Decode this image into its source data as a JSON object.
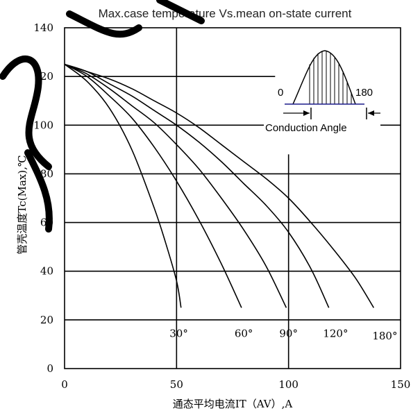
{
  "chart_data": {
    "type": "line",
    "title": "Max.case temperature Vs.mean on-state current",
    "xlabel": "通态平均电流IT（AV）,A",
    "ylabel": "管壳温度Tc(Max),℃",
    "xlim": [
      0,
      150
    ],
    "ylim": [
      0,
      140
    ],
    "x_ticks": [
      "0",
      "50",
      "100",
      "150"
    ],
    "y_ticks": [
      "0",
      "20",
      "40",
      "60",
      "80",
      "100",
      "120",
      "140"
    ],
    "grid": true,
    "series": [
      {
        "name": "30°",
        "x": [
          0,
          10,
          20,
          30,
          40,
          45,
          50,
          52
        ],
        "y": [
          125,
          118,
          107,
          90,
          66,
          52,
          36,
          25
        ]
      },
      {
        "name": "60°",
        "x": [
          0,
          10,
          20,
          30,
          40,
          50,
          60,
          70,
          79
        ],
        "y": [
          125,
          120,
          112,
          103,
          91,
          77,
          61,
          43,
          25
        ]
      },
      {
        "name": "90°",
        "x": [
          0,
          10,
          20,
          30,
          40,
          50,
          60,
          70,
          80,
          90,
          99
        ],
        "y": [
          125,
          121,
          115,
          108,
          101,
          92,
          82,
          70,
          57,
          42,
          25
        ]
      },
      {
        "name": "120°",
        "x": [
          0,
          10,
          20,
          30,
          40,
          50,
          60,
          70,
          80,
          90,
          100,
          110,
          118
        ],
        "y": [
          125,
          122,
          117,
          112,
          106,
          100,
          93,
          85,
          76,
          67,
          56,
          41,
          25
        ]
      },
      {
        "name": "180°",
        "x": [
          0,
          10,
          20,
          30,
          40,
          50,
          60,
          70,
          80,
          90,
          100,
          110,
          120,
          130,
          138
        ],
        "y": [
          125,
          122,
          119,
          115,
          110,
          105,
          99,
          92,
          85,
          78,
          70,
          60,
          49,
          37,
          25
        ]
      }
    ],
    "series_labels": [
      {
        "text": "30°",
        "x": 51,
        "y": 13
      },
      {
        "text": "60°",
        "x": 80,
        "y": 13
      },
      {
        "text": "90°",
        "x": 100,
        "y": 13
      },
      {
        "text": "120°",
        "x": 121,
        "y": 13
      },
      {
        "text": "180°",
        "x": 143,
        "y": 12
      }
    ],
    "inset": {
      "label_start": "0",
      "label_end": "180",
      "caption": "Conduction Angle"
    }
  }
}
